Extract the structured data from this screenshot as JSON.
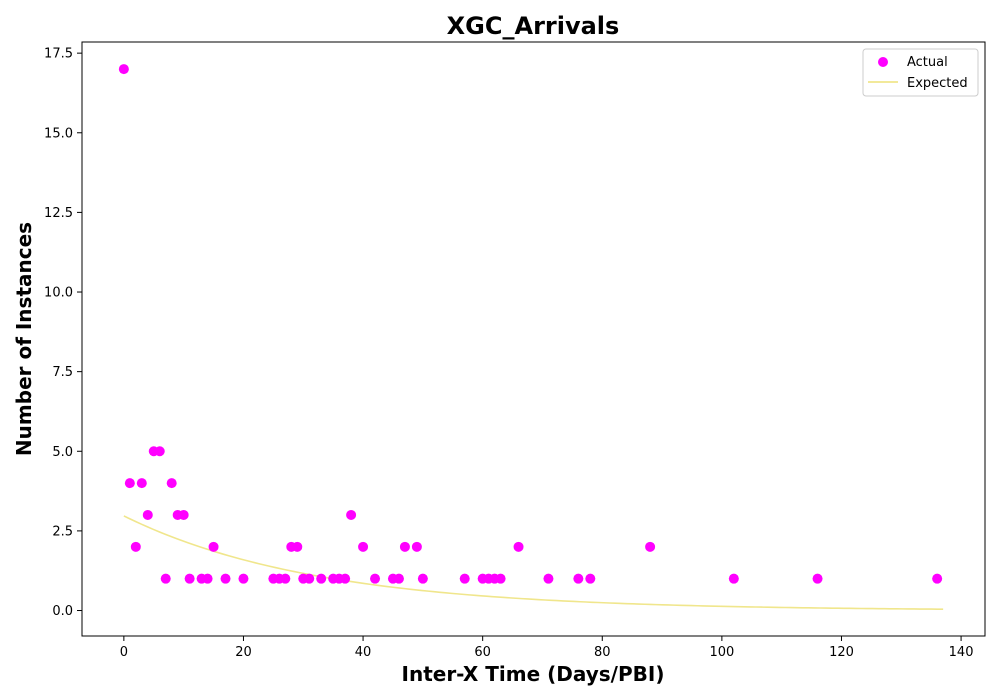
{
  "chart_data": {
    "type": "scatter",
    "title": "XGC_Arrivals",
    "xlabel": "Inter-X Time (Days/PBI)",
    "ylabel": "Number of Instances",
    "xlim": [
      -7,
      144
    ],
    "ylim": [
      -0.8,
      17.85
    ],
    "xticks": [
      0,
      20,
      40,
      60,
      80,
      100,
      120,
      140
    ],
    "xtick_labels": [
      "0",
      "20",
      "40",
      "60",
      "80",
      "100",
      "120",
      "140"
    ],
    "yticks": [
      0,
      2.5,
      5,
      7.5,
      10,
      12.5,
      15,
      17.5
    ],
    "ytick_labels": [
      "0.0",
      "2.5",
      "5.0",
      "7.5",
      "10.0",
      "12.5",
      "15.0",
      "17.5"
    ],
    "grid": false,
    "legend_position": "top-right",
    "series": [
      {
        "name": "Actual",
        "kind": "scatter",
        "color": "#ff00ff",
        "x": [
          0,
          1,
          2,
          3,
          4,
          5,
          6,
          7,
          8,
          9,
          10,
          11,
          13,
          14,
          15,
          17,
          20,
          25,
          26,
          27,
          28,
          29,
          30,
          31,
          33,
          35,
          36,
          37,
          38,
          40,
          42,
          45,
          46,
          47,
          49,
          50,
          57,
          60,
          61,
          62,
          63,
          66,
          71,
          76,
          78,
          88,
          102,
          116,
          136
        ],
        "y": [
          17,
          4,
          2,
          4,
          3,
          5,
          5,
          1,
          4,
          3,
          3,
          1,
          1,
          1,
          2,
          1,
          1,
          1,
          1,
          1,
          2,
          2,
          1,
          1,
          1,
          1,
          1,
          1,
          3,
          2,
          1,
          1,
          1,
          2,
          2,
          1,
          1,
          1,
          1,
          1,
          1,
          2,
          1,
          1,
          1,
          2,
          1,
          1,
          1
        ]
      },
      {
        "name": "Expected",
        "kind": "line",
        "color": "#f0e68c",
        "model": "exponential",
        "amplitude": 2.97,
        "scale": 32.1,
        "x_range": [
          0,
          137
        ]
      }
    ]
  }
}
